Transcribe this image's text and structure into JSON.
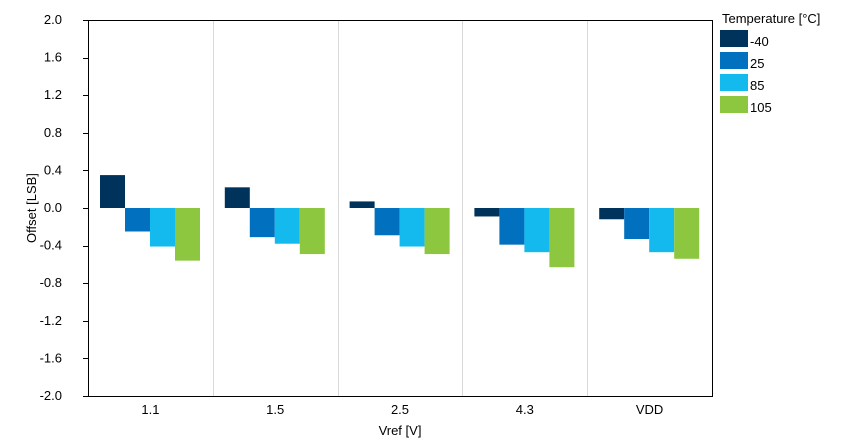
{
  "chart_data": {
    "type": "bar",
    "title": "",
    "xlabel": "Vref [V]",
    "ylabel": "Offset [LSB]",
    "ylim": [
      -2.0,
      2.0
    ],
    "yticks": [
      "2.0",
      "1.6",
      "1.2",
      "0.8",
      "0.4",
      "0.0",
      "-0.4",
      "-0.8",
      "-1.2",
      "-1.6",
      "-2.0"
    ],
    "categories": [
      "1.1",
      "1.5",
      "2.5",
      "4.3",
      "VDD"
    ],
    "grid": "vertical",
    "legend_title": "Temperature [°C]",
    "legend_position": "top-right",
    "series": [
      {
        "name": "-40",
        "color": "#00335b",
        "values": [
          0.35,
          0.22,
          0.07,
          -0.09,
          -0.12
        ]
      },
      {
        "name": "25",
        "color": "#0070bf",
        "values": [
          -0.25,
          -0.31,
          -0.29,
          -0.39,
          -0.33
        ]
      },
      {
        "name": "85",
        "color": "#14b9ed",
        "values": [
          -0.41,
          -0.38,
          -0.41,
          -0.47,
          -0.47
        ]
      },
      {
        "name": "105",
        "color": "#8dc63f",
        "values": [
          -0.56,
          -0.49,
          -0.49,
          -0.63,
          -0.54
        ]
      }
    ]
  }
}
